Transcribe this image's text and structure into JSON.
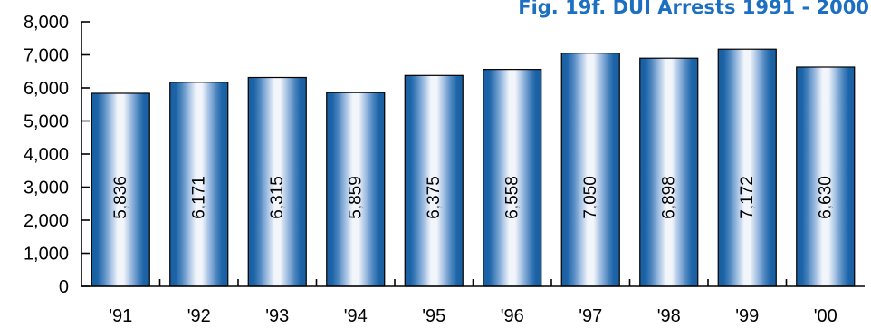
{
  "chart_data": {
    "type": "bar",
    "title": "Fig. 19f. DUI Arrests 1991 - 2000",
    "xlabel": "",
    "ylabel": "",
    "categories": [
      "'91",
      "'92",
      "'93",
      "'94",
      "'95",
      "'96",
      "'97",
      "'98",
      "'99",
      "'00"
    ],
    "values": [
      5836,
      6171,
      6315,
      5859,
      6375,
      6558,
      7050,
      6898,
      7172,
      6630
    ],
    "value_labels": [
      "5,836",
      "6,171",
      "6,315",
      "5,859",
      "6,375",
      "6,558",
      "7,050",
      "6,898",
      "7,172",
      "6,630"
    ],
    "ylim": [
      0,
      8000
    ],
    "yticks": [
      0,
      1000,
      2000,
      3000,
      4000,
      5000,
      6000,
      7000,
      8000
    ],
    "ytick_labels": [
      "0",
      "1,000",
      "2,000",
      "3,000",
      "4,000",
      "5,000",
      "6,000",
      "7,000",
      "8,000"
    ],
    "grid": false,
    "legend": "none"
  },
  "colors": {
    "title": "#1d6fc2",
    "bar_dark": "#1b64a8",
    "bar_light": "#f2f6fb",
    "axis": "#000000"
  }
}
